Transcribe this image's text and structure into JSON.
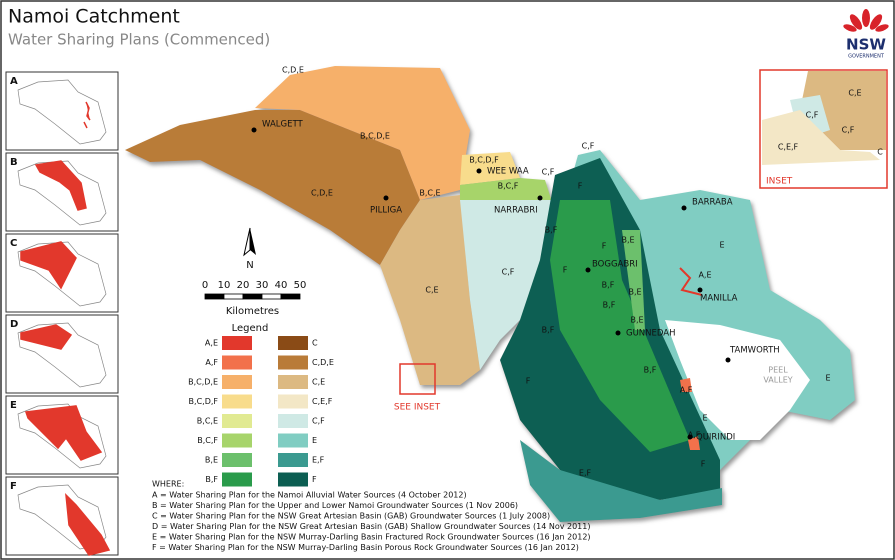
{
  "header": {
    "title": "Namoi Catchment",
    "subtitle": "Water Sharing Plans (Commenced)"
  },
  "logo": {
    "text": "NSW",
    "subtext": "GOVERNMENT"
  },
  "panels": [
    {
      "label": "A"
    },
    {
      "label": "B"
    },
    {
      "label": "C"
    },
    {
      "label": "D"
    },
    {
      "label": "E"
    },
    {
      "label": "F"
    }
  ],
  "map": {
    "regions": [
      "C,D,E",
      "B,C,D,E",
      "C,D,E",
      "B,C,E",
      "B,C,D,F",
      "B,C,F",
      "C,F",
      "C,F",
      "F",
      "C,E",
      "C,F",
      "B,F",
      "F",
      "B,E",
      "E",
      "F",
      "A,E",
      "B,F",
      "B,E",
      "B,F",
      "B,E",
      "B,F",
      "F",
      "B,F",
      "A,F",
      "E",
      "A,F",
      "F",
      "E,F",
      "E"
    ],
    "towns": [
      "WALGETT",
      "PILLIGA",
      "WEE WAA",
      "NARRABRI",
      "BARRABA",
      "BOGGABRI",
      "GUNNEDAH",
      "MANILLA",
      "TAMWORTH",
      "QUIRINDI"
    ],
    "peel_valley": [
      "PEEL",
      "VALLEY"
    ],
    "see_inset": "SEE INSET"
  },
  "inset": {
    "title": "INSET",
    "labels": [
      "C,E",
      "C,F",
      "C,F",
      "C,E,F",
      "C"
    ]
  },
  "north": "N",
  "scale_bar": {
    "ticks": [
      0,
      10,
      20,
      30,
      40,
      50
    ],
    "unit": "Kilometres"
  },
  "legend": {
    "title": "Legend",
    "items": [
      {
        "label": "A,E",
        "color": "#e2382c"
      },
      {
        "label": "C",
        "color": "#8a4b16"
      },
      {
        "label": "A,F",
        "color": "#f2714b"
      },
      {
        "label": "C,D,E",
        "color": "#b97b38"
      },
      {
        "label": "B,C,D,E",
        "color": "#f6b06a"
      },
      {
        "label": "C,E",
        "color": "#dcb982"
      },
      {
        "label": "B,C,D,F",
        "color": "#f8dc8c"
      },
      {
        "label": "C,E,F",
        "color": "#f3e7c6"
      },
      {
        "label": "B,C,E",
        "color": "#e1ea92"
      },
      {
        "label": "C,F",
        "color": "#cfe9e5"
      },
      {
        "label": "B,C,F",
        "color": "#a7d46b"
      },
      {
        "label": "E",
        "color": "#80cdc2"
      },
      {
        "label": "B,E",
        "color": "#6cc06c"
      },
      {
        "label": "E,F",
        "color": "#3b9a90"
      },
      {
        "label": "B,F",
        "color": "#2a9b4b"
      },
      {
        "label": "F",
        "color": "#0c5e52"
      }
    ]
  },
  "notes": {
    "heading": "WHERE:",
    "lines": [
      "A = Water Sharing Plan for the Namoi Alluvial Water Sources (4 October 2012)",
      "B = Water Sharing Plan for the Upper and Lower Namoi Groundwater Sources (1 Nov 2006)",
      "C = Water Sharing Plan for the NSW Great Artesian Basin (GAB) Groundwater Sources (1 July 2008)",
      "D = Water Sharing Plan for the NSW Great Artesian Basin (GAB) Shallow Groundwater Sources (14 Nov 2011)",
      "E = Water Sharing Plan for the NSW Murray-Darling Basin Fractured Rock Groundwater Sources (16 Jan 2012)",
      "F = Water Sharing Plan for the NSW Murray-Darling Basin Porous Rock Groundwater Sources (16 Jan 2012)"
    ]
  }
}
